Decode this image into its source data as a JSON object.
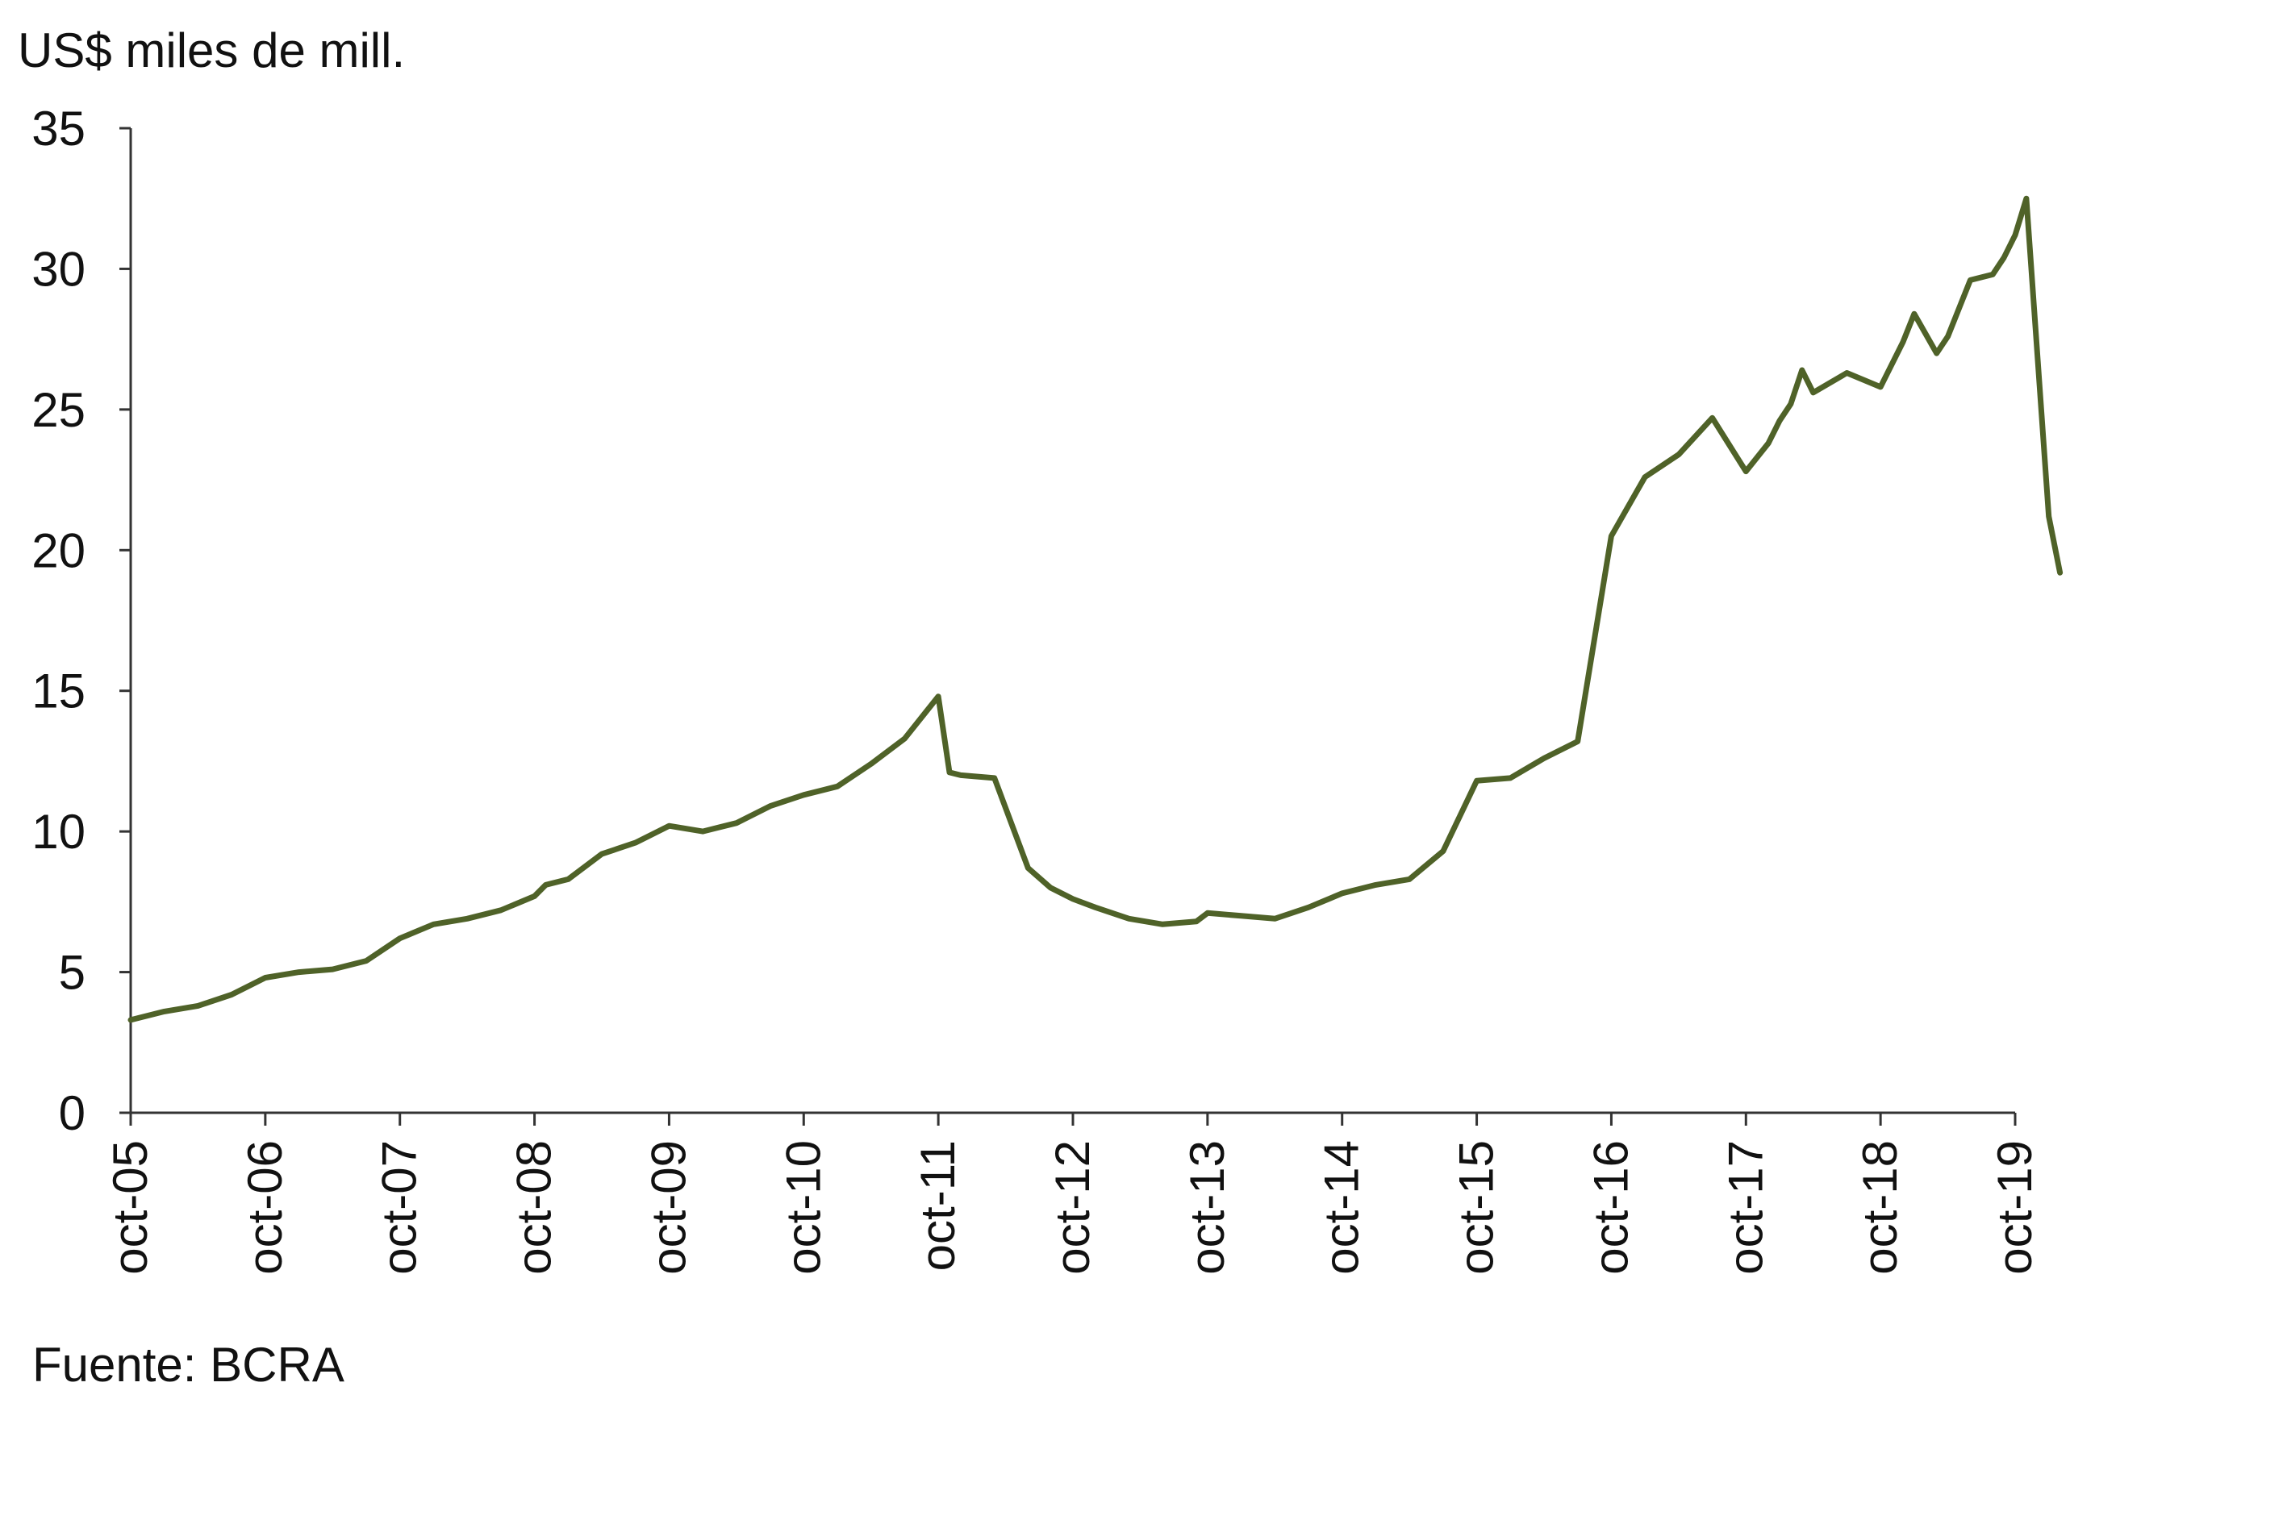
{
  "chart_data": {
    "type": "line",
    "unit_label": "US$ miles de mill.",
    "source": "Fuente: BCRA",
    "ylim": [
      0,
      35
    ],
    "y_ticks": [
      0,
      5,
      10,
      15,
      20,
      25,
      30,
      35
    ],
    "x_tick_labels": [
      "oct-05",
      "oct-06",
      "oct-07",
      "oct-08",
      "oct-09",
      "oct-10",
      "oct-11",
      "oct-12",
      "oct-13",
      "oct-14",
      "oct-15",
      "oct-16",
      "oct-17",
      "oct-18",
      "oct-19"
    ],
    "grid": false,
    "legend": "none",
    "line_color": "#4f6228",
    "series": [
      {
        "x": [
          "2005-10",
          "2006-01",
          "2006-04",
          "2006-07",
          "2006-10",
          "2007-01",
          "2007-04",
          "2007-07",
          "2007-10",
          "2008-01",
          "2008-04",
          "2008-07",
          "2008-10",
          "2008-11",
          "2009-01",
          "2009-04",
          "2009-07",
          "2009-10",
          "2010-01",
          "2010-04",
          "2010-07",
          "2010-10",
          "2011-01",
          "2011-04",
          "2011-07",
          "2011-10",
          "2011-11",
          "2011-12",
          "2012-03",
          "2012-06",
          "2012-08",
          "2012-10",
          "2012-12",
          "2013-03",
          "2013-06",
          "2013-09",
          "2013-10",
          "2014-01",
          "2014-04",
          "2014-07",
          "2014-10",
          "2015-01",
          "2015-04",
          "2015-07",
          "2015-10",
          "2016-01",
          "2016-04",
          "2016-07",
          "2016-10",
          "2017-01",
          "2017-04",
          "2017-07",
          "2017-10",
          "2017-12",
          "2018-01",
          "2018-02",
          "2018-03",
          "2018-04",
          "2018-07",
          "2018-10",
          "2018-12",
          "2019-01",
          "2019-03",
          "2019-04",
          "2019-06",
          "2019-08",
          "2019-09",
          "2019-10",
          "2019-11",
          "2020-01",
          "2020-02"
        ],
        "y": [
          3.3,
          3.6,
          3.8,
          4.2,
          4.8,
          5.0,
          5.1,
          5.4,
          6.2,
          6.7,
          6.9,
          7.2,
          7.7,
          8.1,
          8.3,
          9.2,
          9.6,
          10.2,
          10.0,
          10.3,
          10.9,
          11.3,
          11.6,
          12.4,
          13.3,
          14.8,
          12.1,
          12.0,
          11.9,
          8.7,
          8.0,
          7.6,
          7.3,
          6.9,
          6.7,
          6.8,
          7.1,
          7.0,
          6.9,
          7.3,
          7.8,
          8.1,
          8.3,
          9.3,
          11.8,
          11.9,
          12.6,
          13.2,
          20.5,
          22.6,
          23.4,
          24.7,
          22.8,
          23.8,
          24.6,
          25.2,
          26.4,
          25.6,
          26.3,
          25.8,
          27.4,
          28.4,
          27.0,
          27.6,
          29.6,
          29.8,
          30.4,
          31.2,
          32.5,
          21.2,
          19.2
        ]
      }
    ]
  }
}
